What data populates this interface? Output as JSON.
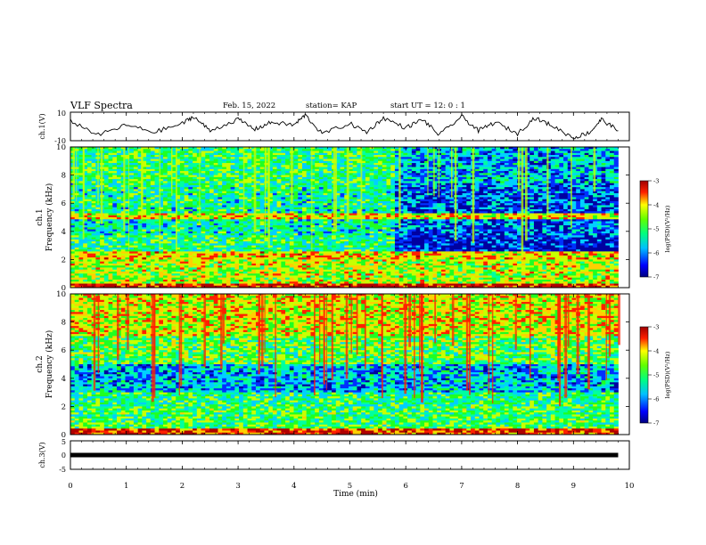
{
  "header": {
    "title": "VLF Spectra",
    "date": "Feb. 15, 2022",
    "station": "station= KAP",
    "start_ut": "start  UT =   12: 0  : 1"
  },
  "axes": {
    "top_ylabel": "ch.1(V)",
    "top_ticks": [
      "10",
      "-10"
    ],
    "ch1_ylabel_1": "ch.1",
    "ch1_ylabel_2": "Frequency (kHz)",
    "ch2_ylabel_1": "ch.2",
    "ch2_ylabel_2": "Frequency (kHz)",
    "freq_ticks": [
      "0",
      "2",
      "4",
      "6",
      "8",
      "10"
    ],
    "bottom_ylabel": "ch.3(V)",
    "bottom_ticks": [
      "5",
      "0",
      "-5"
    ],
    "x_ticks": [
      "0",
      "1",
      "2",
      "3",
      "4",
      "5",
      "6",
      "7",
      "8",
      "9",
      "10"
    ],
    "xlabel": "Time (min)"
  },
  "colorbar": {
    "ticks": [
      "-3",
      "-4",
      "-5",
      "-6",
      "-7"
    ],
    "label": "log(PSD)(V²/Hz)"
  },
  "colors": {
    "palette": [
      "#0000a0",
      "#0030ff",
      "#00d0ff",
      "#00ffa0",
      "#20ff20",
      "#c8ff00",
      "#ffd000",
      "#ff2000",
      "#b00000"
    ]
  },
  "chart_data": [
    {
      "type": "line",
      "name": "ch.1(V) waveform",
      "x": [
        0,
        0.5,
        1,
        1.5,
        2,
        2.2,
        2.5,
        3,
        3.3,
        3.6,
        4,
        4.2,
        4.5,
        5,
        5.3,
        5.6,
        6,
        6.3,
        6.6,
        7,
        7.3,
        7.6,
        8,
        8.3,
        8.6,
        9,
        9.3,
        9.5,
        9.8
      ],
      "y": [
        4,
        -6,
        1,
        -4,
        2,
        7,
        -3,
        5,
        -2,
        3,
        1,
        8,
        -5,
        2,
        -4,
        6,
        -1,
        5,
        -6,
        7,
        -3,
        3,
        -5,
        6,
        1,
        -8,
        -4,
        5,
        -3
      ],
      "xlim": [
        0,
        10
      ],
      "ylim": [
        -10,
        10
      ]
    },
    {
      "type": "heatmap",
      "name": "ch.1 spectrogram",
      "xlim": [
        0,
        10
      ],
      "ylim": [
        0,
        10
      ],
      "color_range": [
        -7,
        -3
      ],
      "data_end_min": 9.8,
      "regime_change_min": 5.8,
      "band_levels": [
        {
          "f_range": [
            0,
            0.3
          ],
          "level": -3.4
        },
        {
          "f_range": [
            0.3,
            2
          ],
          "level": -4.6
        },
        {
          "f_range": [
            2,
            2.6
          ],
          "level": -4.2
        },
        {
          "f_range": [
            2.6,
            3.7
          ],
          "level": -5.3,
          "level_after": -6.6
        },
        {
          "f_range": [
            3.7,
            4.9
          ],
          "level": -5.5,
          "level_after": -6.2
        },
        {
          "f_range": [
            4.9,
            5.3
          ],
          "level": -4.3
        },
        {
          "f_range": [
            5.3,
            7.5
          ],
          "level": -5.4,
          "level_after": -6.3
        },
        {
          "f_range": [
            7.5,
            10
          ],
          "level": -5.2,
          "level_after": -5.9
        }
      ]
    },
    {
      "type": "heatmap",
      "name": "ch.2 spectrogram",
      "xlim": [
        0,
        10
      ],
      "ylim": [
        0,
        10
      ],
      "color_range": [
        -7,
        -3
      ],
      "data_end_min": 9.8,
      "band_levels": [
        {
          "f_range": [
            0,
            0.4
          ],
          "level": -3.6
        },
        {
          "f_range": [
            0.4,
            2
          ],
          "level": -5.1
        },
        {
          "f_range": [
            2,
            3
          ],
          "level": -5.3
        },
        {
          "f_range": [
            3,
            5
          ],
          "level": -5.9
        },
        {
          "f_range": [
            5,
            7
          ],
          "level": -5.0
        },
        {
          "f_range": [
            7,
            10
          ],
          "level": -4.4
        }
      ]
    },
    {
      "type": "line",
      "name": "ch.3(V)",
      "x": [
        0,
        9.8
      ],
      "y": [
        0,
        0
      ],
      "xlim": [
        0,
        10
      ],
      "ylim": [
        -5,
        5
      ]
    }
  ]
}
